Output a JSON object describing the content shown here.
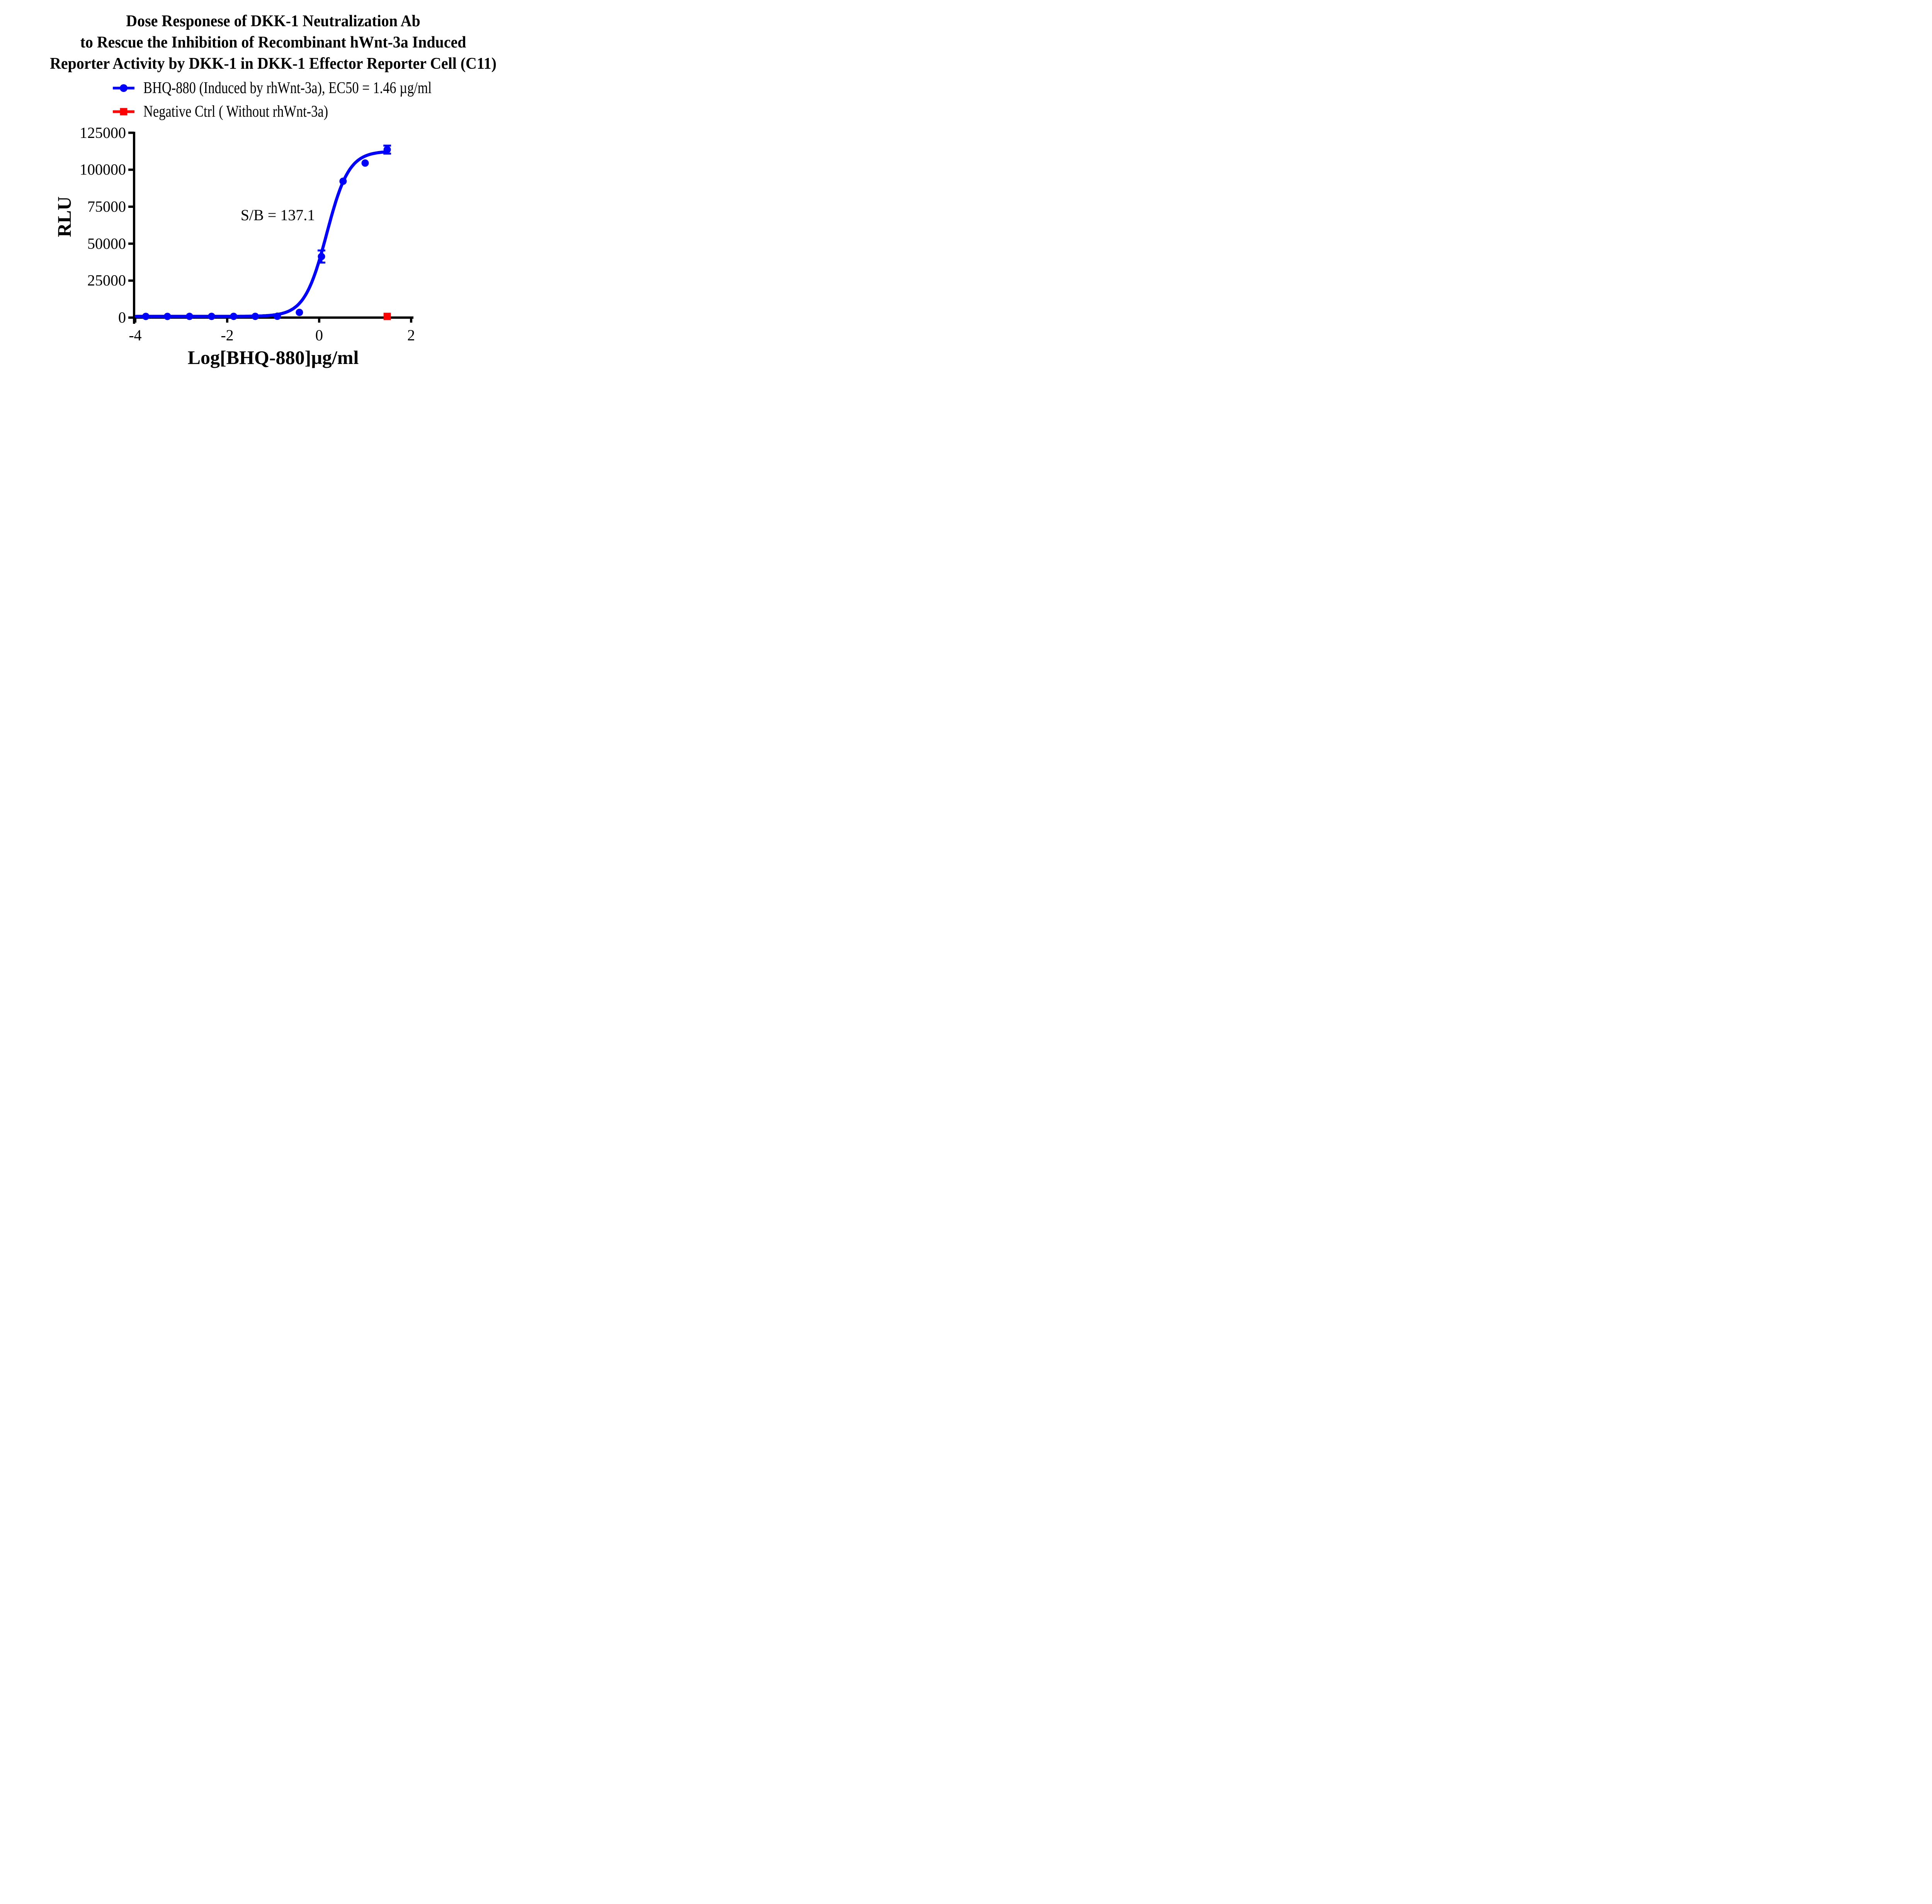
{
  "title": {
    "line1": "Dose Responese of DKK-1 Neutralization Ab",
    "line2": "to Rescue the Inhibition of Recombinant hWnt-3a Induced",
    "line3": "Reporter Activity by DKK-1 in DKK-1 Effector Reporter Cell (C11)"
  },
  "legend": [
    {
      "label": "BHQ-880 (Induced by rhWnt-3a), EC50 = 1.46 µg/ml",
      "color": "#0000FE",
      "marker": "circle"
    },
    {
      "label": "Negative Ctrl ( Without rhWnt-3a)",
      "color": "#FF0000",
      "marker": "square"
    }
  ],
  "annotation": {
    "sb_text": "S/B = 137.1",
    "sb_value": 137.1
  },
  "axes": {
    "x_label": "Log[BHQ-880]µg/ml",
    "y_label": "RLU",
    "x_ticks": [
      -4,
      -2,
      0,
      2
    ],
    "y_ticks": [
      0,
      25000,
      50000,
      75000,
      100000,
      125000
    ],
    "x_range": [
      -4,
      2
    ],
    "y_range": [
      0,
      125000
    ],
    "grid": false,
    "color": "#000000"
  },
  "chart_data": {
    "type": "scatter",
    "title": "Dose Responese of DKK-1 Neutralization Ab to Rescue the Inhibition of Recombinant hWnt-3a Induced Reporter Activity by DKK-1 in DKK-1 Effector Reporter Cell (C11)",
    "xlabel": "Log[BHQ-880]µg/ml",
    "ylabel": "RLU",
    "xlim": [
      -4,
      2
    ],
    "ylim": [
      0,
      125000
    ],
    "legend_position": "top",
    "signal_to_background": 137.1,
    "series": [
      {
        "name": "BHQ-880 (Induced by rhWnt-3a)",
        "color": "#0000FE",
        "marker": "circle",
        "ec50_ug_ml": 1.46,
        "points": [
          {
            "x": -3.77,
            "y": 800,
            "err": 0
          },
          {
            "x": -3.3,
            "y": 800,
            "err": 0
          },
          {
            "x": -2.82,
            "y": 820,
            "err": 0
          },
          {
            "x": -2.34,
            "y": 820,
            "err": 0
          },
          {
            "x": -1.86,
            "y": 830,
            "err": 0
          },
          {
            "x": -1.39,
            "y": 830,
            "err": 0
          },
          {
            "x": -0.91,
            "y": 900,
            "err": 0
          },
          {
            "x": -0.43,
            "y": 3500,
            "err": 0
          },
          {
            "x": 0.05,
            "y": 41300,
            "err": 4100
          },
          {
            "x": 0.52,
            "y": 92200,
            "err": 0
          },
          {
            "x": 1.0,
            "y": 104500,
            "err": 0
          },
          {
            "x": 1.48,
            "y": 113600,
            "err": 2700
          }
        ],
        "fit_curve": {
          "model": "4PL",
          "bottom": 830,
          "top": 112600,
          "logEC50": 0.164,
          "hill": 1.8,
          "x_start": -3.98,
          "x_end": 1.48
        }
      },
      {
        "name": "Negative Ctrl ( Without rhWnt-3a)",
        "color": "#FF0000",
        "marker": "square",
        "points": [
          {
            "x": 1.48,
            "y": 800,
            "err": 0
          }
        ]
      }
    ]
  }
}
